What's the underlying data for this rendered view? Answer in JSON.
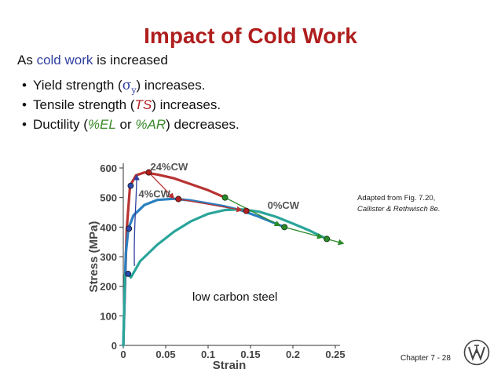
{
  "title": "Impact of Cold Work",
  "intro": {
    "prefix": "As ",
    "highlight": "cold work",
    "suffix": " is increased"
  },
  "bullets": [
    {
      "a": "Yield strength (",
      "sym": "σ",
      "sub": "y",
      "b": ") increases."
    },
    {
      "a": "Tensile strength (",
      "em": "TS",
      "b": ") increases."
    },
    {
      "a": "Ductility (",
      "em1": "%EL",
      "mid": " or ",
      "em2": "%AR",
      "b": ") decreases."
    }
  ],
  "note": {
    "line1": "Adapted from Fig. 7.20,",
    "line2": "Callister & Rethwisch 8e."
  },
  "footer": {
    "chapter": "Chapter 7 -  28"
  },
  "colors": {
    "title": "#b01e1e",
    "accent_blue": "#2f3f9f",
    "red_curve": "#b83232",
    "blue_curve": "#2a7fc0",
    "teal_curve": "#2aa59a",
    "arrow_green": "#2a8a2a"
  },
  "chart_data": {
    "type": "line",
    "xlabel": "Strain",
    "ylabel": "Stress (MPa)",
    "xlim": [
      0,
      0.25
    ],
    "ylim": [
      0,
      600
    ],
    "xticks": [
      "0",
      "0.05",
      "0.1",
      "0.15",
      "0.2",
      "0.25"
    ],
    "yticks": [
      "0",
      "100",
      "200",
      "300",
      "400",
      "500",
      "600"
    ],
    "annotation": "low carbon steel",
    "series": [
      {
        "name": "24%CW",
        "x": [
          0,
          0.004,
          0.008,
          0.015,
          0.025,
          0.04,
          0.06,
          0.08,
          0.1,
          0.12
        ],
        "y": [
          0,
          390,
          540,
          575,
          585,
          578,
          565,
          545,
          525,
          500
        ]
      },
      {
        "name": "4%CW",
        "x": [
          0,
          0.003,
          0.006,
          0.012,
          0.025,
          0.04,
          0.06,
          0.08,
          0.1,
          0.12,
          0.14,
          0.16,
          0.19
        ],
        "y": [
          0,
          310,
          395,
          440,
          475,
          492,
          496,
          490,
          480,
          470,
          456,
          435,
          400
        ]
      },
      {
        "name": "0%CW",
        "x": [
          0,
          0.002,
          0.005,
          0.009,
          0.014,
          0.02,
          0.04,
          0.06,
          0.08,
          0.1,
          0.12,
          0.14,
          0.16,
          0.18,
          0.2,
          0.22,
          0.24
        ],
        "y": [
          0,
          240,
          245,
          230,
          255,
          285,
          340,
          385,
          420,
          445,
          458,
          460,
          452,
          435,
          412,
          388,
          360
        ]
      }
    ],
    "markers": {
      "yield_points": [
        {
          "x": 0.005,
          "y": 540
        },
        {
          "x": 0.003,
          "y": 395
        },
        {
          "x": 0.002,
          "y": 242
        }
      ],
      "ts_points": [
        {
          "x": 0.03,
          "y": 585
        },
        {
          "x": 0.065,
          "y": 495
        },
        {
          "x": 0.145,
          "y": 455
        }
      ],
      "fracture_points": [
        {
          "x": 0.12,
          "y": 500
        },
        {
          "x": 0.19,
          "y": 400
        },
        {
          "x": 0.24,
          "y": 360
        }
      ]
    },
    "curve_labels": [
      {
        "text": "24%CW",
        "x": 0.032,
        "y": 592
      },
      {
        "text": "4%CW",
        "x": 0.018,
        "y": 500
      },
      {
        "text": "0%CW",
        "x": 0.17,
        "y": 462
      }
    ]
  }
}
